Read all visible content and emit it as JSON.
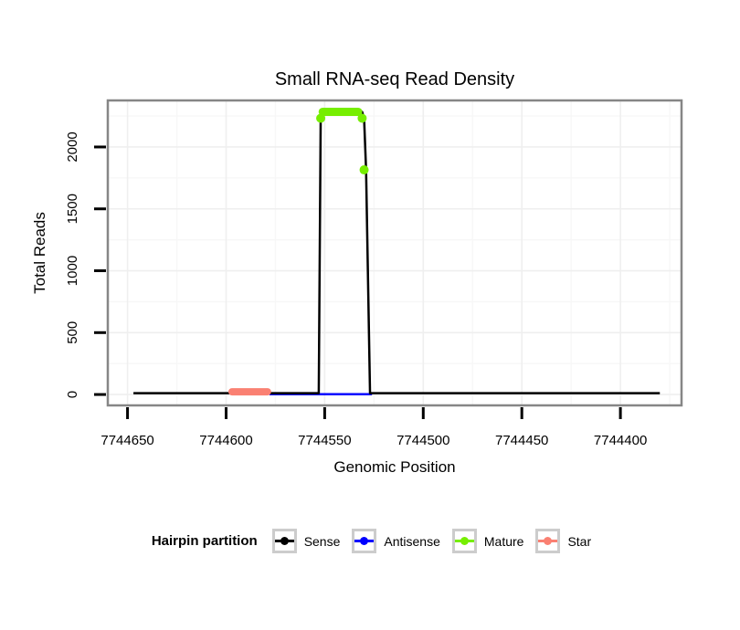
{
  "legend": {
    "title": "Hairpin partition",
    "items": [
      {
        "label": "Sense",
        "color": "#000000"
      },
      {
        "label": "Antisense",
        "color": "#0000ff"
      },
      {
        "label": "Mature",
        "color": "#76ee00"
      },
      {
        "label": "Star",
        "color": "#fa8072"
      }
    ]
  },
  "chart_data": {
    "type": "line",
    "title": "Small RNA-seq Read Density",
    "xlabel": "Genomic Position",
    "ylabel": "Total Reads",
    "xlim": [
      7744660,
      7744369
    ],
    "ylim": [
      -88,
      2376
    ],
    "x_ticks": [
      7744650,
      7744600,
      7744550,
      7744500,
      7744450,
      7744400
    ],
    "x_minor_ticks": [
      7744625,
      7744575,
      7744525,
      7744475,
      7744425,
      7744375
    ],
    "y_ticks": [
      0,
      500,
      1000,
      1500,
      2000
    ],
    "y_minor_ticks": [
      250,
      750,
      1250,
      1750,
      2250
    ],
    "grid": "major+minor",
    "grid_major_color": "#efefef",
    "grid_minor_color": "#f7f7f7",
    "panel_border_color": "#868686",
    "legend_position": "bottom",
    "series": [
      {
        "name": "Antisense",
        "color": "#0000ff",
        "draw": "line",
        "width": 2.5,
        "points": [
          [
            7744578,
            2
          ],
          [
            7744526,
            2
          ]
        ]
      },
      {
        "name": "Sense",
        "color": "#000000",
        "draw": "line",
        "width": 2.5,
        "points": [
          [
            7744647,
            11
          ],
          [
            7744553,
            11
          ],
          [
            7744552,
            2284
          ],
          [
            7744531,
            2284
          ],
          [
            7744530,
            2230
          ],
          [
            7744529,
            1815
          ],
          [
            7744527,
            11
          ],
          [
            7744380,
            11
          ]
        ]
      },
      {
        "name": "Star",
        "color": "#fa8072",
        "draw": "line",
        "width": 8,
        "points": [
          [
            7744597,
            22
          ],
          [
            7744579,
            22
          ]
        ]
      },
      {
        "name": "Mature",
        "color": "#76ee00",
        "draw": "line+points",
        "width": 9,
        "points": [
          [
            7744551,
            2284
          ],
          [
            7744533,
            2284
          ]
        ],
        "dots": [
          [
            7744552,
            2232
          ],
          [
            7744531,
            2232
          ],
          [
            7744530,
            1815
          ]
        ],
        "dot_radius": 5
      }
    ]
  }
}
